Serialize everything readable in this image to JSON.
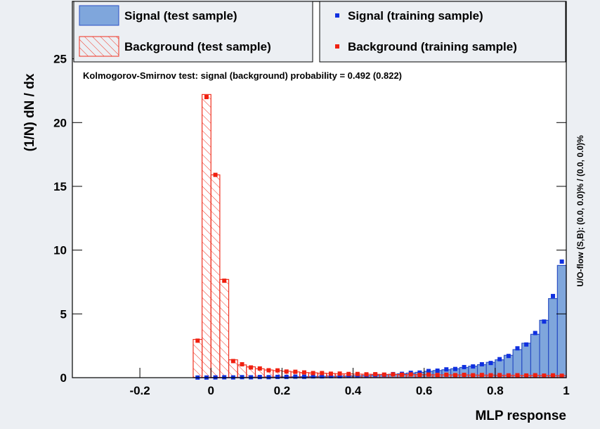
{
  "chart_data": {
    "type": "histogram",
    "y_label": "(1/N) dN / dx",
    "x_label": "MLP response",
    "annotation": "Kolmogorov-Smirnov test: signal (background) probability = 0.492 (0.822)",
    "side_note": "U/O-flow (S,B): (0.0, 0.0)% / (0.0, 0.0)%",
    "xlim": [
      -0.39,
      1
    ],
    "ylim": [
      0,
      29.5
    ],
    "xticks": [
      -0.2,
      0,
      0.2,
      0.4,
      0.6,
      0.8,
      1
    ],
    "yticks": [
      0,
      5,
      10,
      15,
      20,
      25
    ],
    "bins": [
      -0.05,
      -0.025,
      0,
      0.025,
      0.05,
      0.075,
      0.1,
      0.125,
      0.15,
      0.175,
      0.2,
      0.225,
      0.25,
      0.275,
      0.3,
      0.325,
      0.35,
      0.375,
      0.4,
      0.425,
      0.45,
      0.475,
      0.5,
      0.525,
      0.55,
      0.575,
      0.6,
      0.625,
      0.65,
      0.675,
      0.7,
      0.725,
      0.75,
      0.775,
      0.8,
      0.825,
      0.85,
      0.875,
      0.9,
      0.925,
      0.95,
      0.975,
      1.0
    ],
    "series": [
      {
        "name": "Signal (test sample)",
        "style": "filled",
        "color": "#2a4fc4",
        "values": [
          0.01,
          0.01,
          0.02,
          0.02,
          0.03,
          0.03,
          0.04,
          0.04,
          0.05,
          0.05,
          0.06,
          0.07,
          0.08,
          0.09,
          0.1,
          0.11,
          0.12,
          0.13,
          0.15,
          0.17,
          0.2,
          0.23,
          0.27,
          0.31,
          0.36,
          0.42,
          0.5,
          0.56,
          0.62,
          0.7,
          0.8,
          0.9,
          1.02,
          1.2,
          1.4,
          1.75,
          2.2,
          2.7,
          3.4,
          4.5,
          6.2,
          8.8
        ]
      },
      {
        "name": "Background (test sample)",
        "style": "hatched",
        "color": "#f03020",
        "values": [
          3.0,
          22.2,
          15.9,
          7.7,
          1.4,
          1.0,
          0.85,
          0.7,
          0.6,
          0.55,
          0.5,
          0.45,
          0.4,
          0.38,
          0.35,
          0.33,
          0.3,
          0.3,
          0.28,
          0.27,
          0.26,
          0.25,
          0.25,
          0.24,
          0.24,
          0.23,
          0.23,
          0.22,
          0.22,
          0.21,
          0.21,
          0.2,
          0.2,
          0.2,
          0.19,
          0.19,
          0.18,
          0.18,
          0.18,
          0.17,
          0.17,
          0.16
        ]
      },
      {
        "name": "Signal (training sample)",
        "style": "points",
        "color": "#1030e0",
        "values": [
          0.01,
          0.01,
          0.02,
          0.03,
          0.02,
          0.04,
          0.03,
          0.05,
          0.04,
          0.06,
          0.06,
          0.08,
          0.07,
          0.1,
          0.1,
          0.12,
          0.11,
          0.14,
          0.16,
          0.17,
          0.21,
          0.22,
          0.28,
          0.3,
          0.38,
          0.4,
          0.52,
          0.55,
          0.65,
          0.68,
          0.83,
          0.88,
          1.05,
          1.15,
          1.45,
          1.7,
          2.3,
          2.6,
          3.5,
          4.4,
          6.4,
          9.1
        ]
      },
      {
        "name": "Background (training sample)",
        "style": "points",
        "color": "#f02010",
        "values": [
          2.9,
          22.0,
          15.9,
          7.6,
          1.3,
          1.05,
          0.8,
          0.72,
          0.58,
          0.57,
          0.48,
          0.46,
          0.41,
          0.36,
          0.36,
          0.31,
          0.32,
          0.29,
          0.29,
          0.26,
          0.27,
          0.24,
          0.26,
          0.23,
          0.25,
          0.22,
          0.24,
          0.21,
          0.23,
          0.2,
          0.22,
          0.19,
          0.21,
          0.19,
          0.2,
          0.18,
          0.19,
          0.17,
          0.19,
          0.16,
          0.18,
          0.15
        ]
      }
    ]
  }
}
